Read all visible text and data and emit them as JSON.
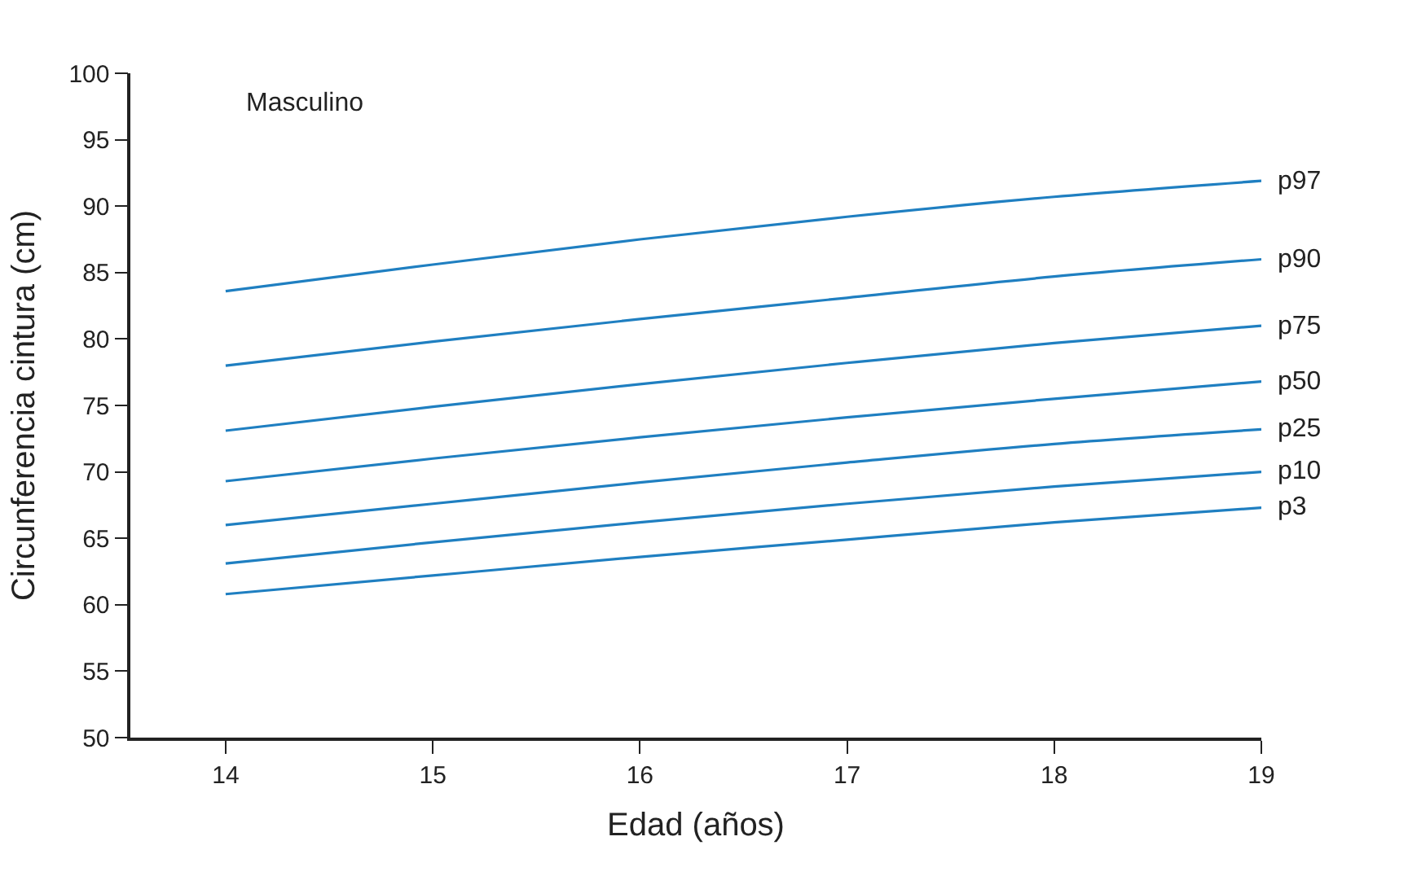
{
  "chart_data": {
    "type": "line",
    "xlabel": "Edad (años)",
    "ylabel": "Circunferencia cintura (cm)",
    "annotations": [
      "Masculino"
    ],
    "x": [
      14,
      15,
      16,
      17,
      18,
      19
    ],
    "xlim": [
      13.54,
      19
    ],
    "xticks": [
      14,
      15,
      16,
      17,
      18,
      19
    ],
    "ylim": [
      50,
      100
    ],
    "yticks": [
      50,
      55,
      60,
      65,
      70,
      75,
      80,
      85,
      90,
      95,
      100
    ],
    "legend": false,
    "marker": "none",
    "line_style": "solid",
    "series": [
      {
        "name": "p97",
        "color": "#1f7fc1",
        "values": [
          83.6,
          85.6,
          87.5,
          89.2,
          90.7,
          91.9
        ]
      },
      {
        "name": "p90",
        "color": "#1f7fc1",
        "values": [
          78.0,
          79.8,
          81.5,
          83.1,
          84.7,
          86.0
        ]
      },
      {
        "name": "p75",
        "color": "#1f7fc1",
        "values": [
          73.1,
          74.9,
          76.6,
          78.2,
          79.7,
          81.0
        ]
      },
      {
        "name": "p50",
        "color": "#1f7fc1",
        "values": [
          69.3,
          71.0,
          72.6,
          74.1,
          75.5,
          76.8
        ]
      },
      {
        "name": "p25",
        "color": "#1f7fc1",
        "values": [
          66.0,
          67.6,
          69.2,
          70.7,
          72.1,
          73.2
        ]
      },
      {
        "name": "p10",
        "color": "#1f7fc1",
        "values": [
          63.1,
          64.7,
          66.2,
          67.6,
          68.9,
          70.0
        ]
      },
      {
        "name": "p3",
        "color": "#1f7fc1",
        "values": [
          60.8,
          62.2,
          63.6,
          64.9,
          66.2,
          67.3
        ]
      }
    ]
  }
}
